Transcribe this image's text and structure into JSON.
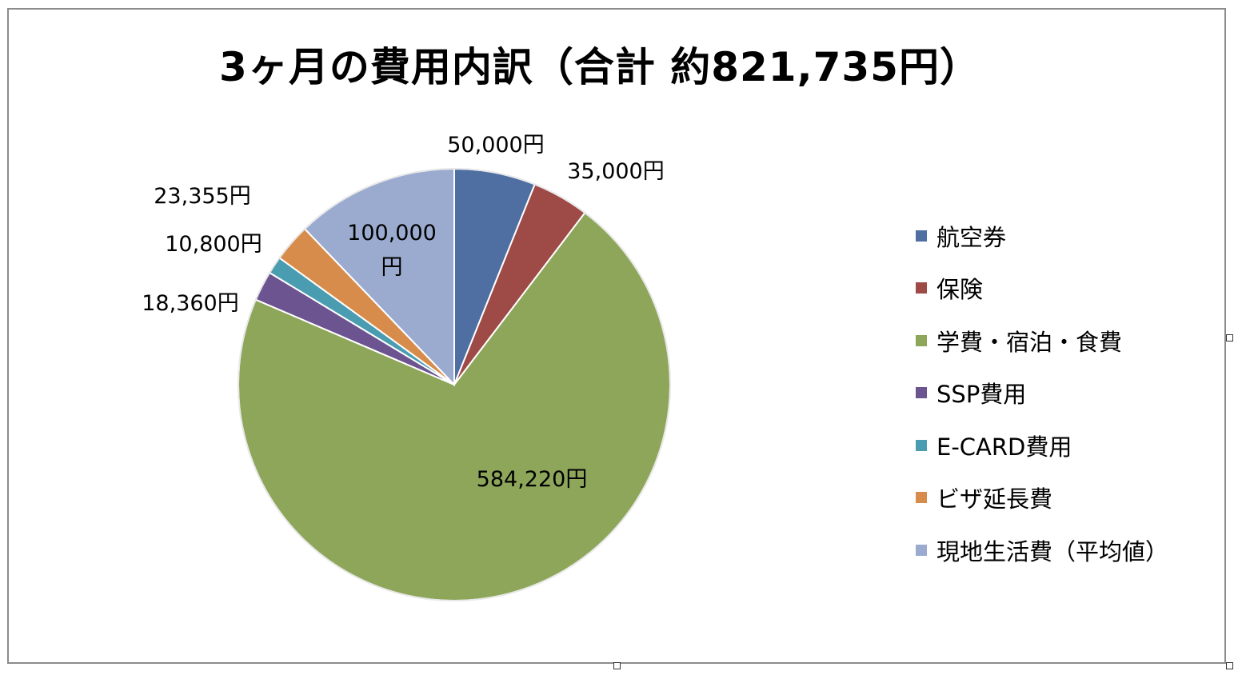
{
  "chart_data": {
    "type": "pie",
    "title": "3ヶ月の費用内訳（合計 約821,735円）",
    "categories": [
      "航空券",
      "保険",
      "学費・宿泊・食費",
      "SSP費用",
      "E-CARD費用",
      "ビザ延長費",
      "現地生活費（平均値）"
    ],
    "values": [
      50000,
      35000,
      584220,
      18360,
      10800,
      23355,
      100000
    ],
    "data_labels": [
      "50,000円",
      "35,000円",
      "584,220円",
      "18,360円",
      "10,800円",
      "23,355円",
      "100,000円"
    ],
    "colors": [
      "#4f6fa3",
      "#9e4a47",
      "#8ea65a",
      "#6c5490",
      "#4a9cb1",
      "#d88c4b",
      "#9aabcf"
    ],
    "legend_position": "right"
  }
}
